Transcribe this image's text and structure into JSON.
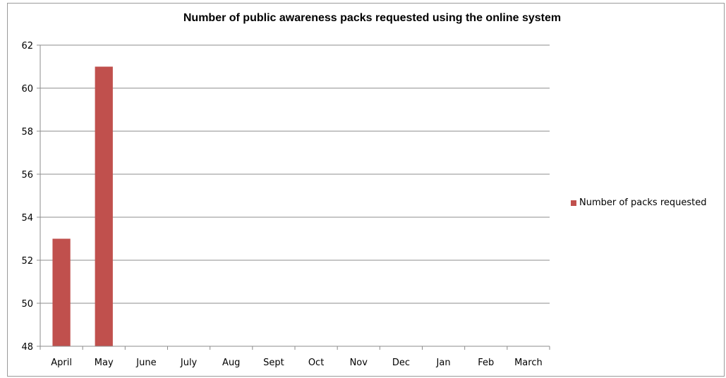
{
  "chart_data": {
    "type": "bar",
    "title": "Number of public awareness packs requested using the online system",
    "xlabel": "",
    "ylabel": "",
    "categories": [
      "April",
      "May",
      "June",
      "July",
      "Aug",
      "Sept",
      "Oct",
      "Nov",
      "Dec",
      "Jan",
      "Feb",
      "March"
    ],
    "series": [
      {
        "name": "Number of packs requested",
        "color": "#c0504d",
        "values": [
          53,
          61,
          null,
          null,
          null,
          null,
          null,
          null,
          null,
          null,
          null,
          null
        ]
      }
    ],
    "ylim": [
      48,
      62
    ],
    "yticks": [
      48,
      50,
      52,
      54,
      56,
      58,
      60,
      62
    ],
    "grid": true,
    "legend": "right"
  }
}
